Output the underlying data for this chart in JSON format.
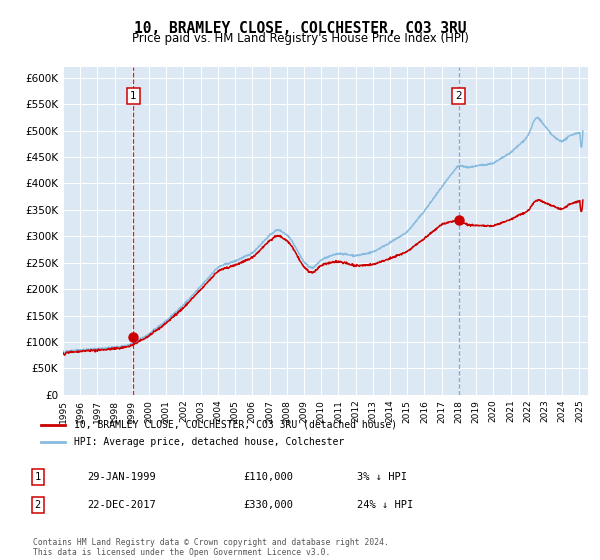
{
  "title": "10, BRAMLEY CLOSE, COLCHESTER, CO3 3RU",
  "subtitle": "Price paid vs. HM Land Registry's House Price Index (HPI)",
  "bg_color": "#dce9f5",
  "fig_bg_color": "#ffffff",
  "hpi_color": "#88bbdd",
  "price_color": "#cc0000",
  "vline1_color": "#cc0000",
  "vline2_color": "#7799bb",
  "ylim": [
    0,
    620000
  ],
  "yticks": [
    0,
    50000,
    100000,
    150000,
    200000,
    250000,
    300000,
    350000,
    400000,
    450000,
    500000,
    550000,
    600000
  ],
  "xlim_start": 1995.0,
  "xlim_end": 2025.5,
  "sale1_date": 1999.08,
  "sale1_price": 110000,
  "sale2_date": 2017.98,
  "sale2_price": 330000,
  "legend1": "10, BRAMLEY CLOSE, COLCHESTER, CO3 3RU (detached house)",
  "legend2": "HPI: Average price, detached house, Colchester",
  "annotation1_date": "29-JAN-1999",
  "annotation1_price": "£110,000",
  "annotation1_hpi": "3% ↓ HPI",
  "annotation2_date": "22-DEC-2017",
  "annotation2_price": "£330,000",
  "annotation2_hpi": "24% ↓ HPI",
  "footer": "Contains HM Land Registry data © Crown copyright and database right 2024.\nThis data is licensed under the Open Government Licence v3.0.",
  "hpi_anchors_t": [
    1995.0,
    1996.0,
    1997.0,
    1998.0,
    1998.5,
    1999.0,
    2000.0,
    2001.0,
    2002.0,
    2003.0,
    2004.0,
    2005.0,
    2006.0,
    2007.0,
    2007.5,
    2008.2,
    2009.0,
    2009.5,
    2010.0,
    2011.0,
    2012.0,
    2013.0,
    2014.0,
    2015.0,
    2016.0,
    2017.0,
    2017.98,
    2018.5,
    2019.0,
    2020.0,
    2021.0,
    2022.0,
    2022.5,
    2023.0,
    2023.5,
    2024.0,
    2024.5,
    2025.2
  ],
  "hpi_anchors_v": [
    82000,
    85000,
    87000,
    90000,
    92000,
    96000,
    115000,
    140000,
    170000,
    205000,
    242000,
    253000,
    268000,
    302000,
    314000,
    298000,
    250000,
    238000,
    256000,
    268000,
    263000,
    270000,
    288000,
    308000,
    348000,
    393000,
    435000,
    430000,
    433000,
    438000,
    458000,
    488000,
    530000,
    508000,
    488000,
    478000,
    492000,
    498000
  ],
  "price_ratio_anchors_t": [
    1995.0,
    1999.08,
    2005.0,
    2010.0,
    2015.0,
    2017.0,
    2017.98,
    2019.0,
    2020.0,
    2021.5,
    2022.5,
    2023.5,
    2025.2
  ],
  "price_ratio_anchors_v": [
    0.97,
    0.97,
    0.97,
    0.96,
    0.88,
    0.82,
    0.758,
    0.74,
    0.73,
    0.72,
    0.7,
    0.73,
    0.74
  ]
}
